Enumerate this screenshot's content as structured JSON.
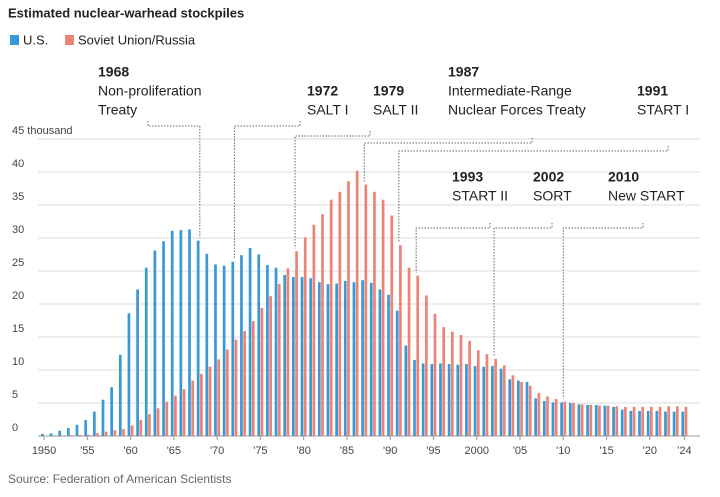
{
  "chart_data": {
    "type": "bar",
    "title": "Estimated nuclear-warhead stockpiles",
    "source": "Source: Federation of American Scientists",
    "x": [
      1950,
      1951,
      1952,
      1953,
      1954,
      1955,
      1956,
      1957,
      1958,
      1959,
      1960,
      1961,
      1962,
      1963,
      1964,
      1965,
      1966,
      1967,
      1968,
      1969,
      1970,
      1971,
      1972,
      1973,
      1974,
      1975,
      1976,
      1977,
      1978,
      1979,
      1980,
      1981,
      1982,
      1983,
      1984,
      1985,
      1986,
      1987,
      1988,
      1989,
      1990,
      1991,
      1992,
      1993,
      1994,
      1995,
      1996,
      1997,
      1998,
      1999,
      2000,
      2001,
      2002,
      2003,
      2004,
      2005,
      2006,
      2007,
      2008,
      2009,
      2010,
      2011,
      2012,
      2013,
      2014,
      2015,
      2016,
      2017,
      2018,
      2019,
      2020,
      2021,
      2022,
      2023,
      2024
    ],
    "series": [
      {
        "name": "U.S.",
        "color": "#3a98d6",
        "values": [
          0.3,
          0.4,
          0.8,
          1.2,
          1.7,
          2.4,
          3.7,
          5.5,
          7.4,
          12.3,
          18.6,
          22.2,
          25.5,
          28.1,
          29.5,
          31.1,
          31.2,
          31.3,
          29.6,
          27.6,
          26.0,
          25.8,
          26.4,
          27.4,
          28.5,
          27.5,
          25.9,
          25.5,
          24.4,
          24.1,
          24.1,
          23.9,
          23.3,
          23.0,
          23.1,
          23.5,
          23.3,
          23.6,
          23.2,
          22.2,
          21.4,
          19.0,
          13.7,
          11.5,
          11.0,
          10.9,
          11.0,
          10.9,
          10.8,
          10.9,
          10.6,
          10.5,
          10.6,
          10.2,
          8.6,
          8.4,
          8.2,
          5.7,
          5.3,
          5.1,
          5.1,
          5.0,
          4.8,
          4.7,
          4.7,
          4.6,
          4.4,
          4.0,
          3.8,
          3.8,
          3.8,
          3.8,
          3.7,
          3.7,
          3.7
        ]
      },
      {
        "name": "Soviet Union/Russia",
        "color": "#ee8275",
        "values": [
          0,
          0,
          0.05,
          0.12,
          0.15,
          0.2,
          0.43,
          0.66,
          0.87,
          1.05,
          1.6,
          2.45,
          3.3,
          4.2,
          5.2,
          6.1,
          7.1,
          8.4,
          9.4,
          10.5,
          11.6,
          13.1,
          14.6,
          15.9,
          17.4,
          19.4,
          21.2,
          23.0,
          25.4,
          28.0,
          30.1,
          32.0,
          33.6,
          35.8,
          37.0,
          38.6,
          40.2,
          38.1,
          37.0,
          35.8,
          33.4,
          28.9,
          25.5,
          24.3,
          21.3,
          18.5,
          16.5,
          15.8,
          15.3,
          14.4,
          13.0,
          12.4,
          11.7,
          10.7,
          9.2,
          8.2,
          7.6,
          6.5,
          6.0,
          5.6,
          5.2,
          5.0,
          4.8,
          4.7,
          4.6,
          4.6,
          4.5,
          4.4,
          4.4,
          4.4,
          4.4,
          4.4,
          4.5,
          4.5,
          4.4
        ]
      }
    ],
    "xlim": [
      1949.3,
      2025.8
    ],
    "xticks": [
      1950,
      {
        "value": 1955,
        "label": "'55"
      },
      {
        "value": 1960,
        "label": "'60"
      },
      {
        "value": 1965,
        "label": "'65"
      },
      {
        "value": 1970,
        "label": "'70"
      },
      {
        "value": 1975,
        "label": "'75"
      },
      {
        "value": 1980,
        "label": "'80"
      },
      {
        "value": 1985,
        "label": "'85"
      },
      {
        "value": 1990,
        "label": "'90"
      },
      {
        "value": 1995,
        "label": "'95"
      },
      2000,
      {
        "value": 2005,
        "label": "'05"
      },
      {
        "value": 2010,
        "label": "'10"
      },
      {
        "value": 2015,
        "label": "'15"
      },
      {
        "value": 2020,
        "label": "'20"
      },
      {
        "value": 2024,
        "label": "'24"
      }
    ],
    "ylim": [
      0,
      45
    ],
    "yticks": [
      0,
      5,
      10,
      15,
      20,
      25,
      30,
      35,
      40,
      {
        "value": 45,
        "label": "45 thousand"
      }
    ],
    "grid": true,
    "annotations": [
      {
        "x": 1968,
        "lines": [
          "Non-proliferation",
          "Treaty"
        ]
      },
      {
        "x": 1972,
        "lines": [
          "SALT I"
        ]
      },
      {
        "x": 1979,
        "lines": [
          "SALT II"
        ]
      },
      {
        "x": 1987,
        "lines": [
          "Intermediate-Range",
          "Nuclear Forces Treaty"
        ]
      },
      {
        "x": 1991,
        "lines": [
          "START I"
        ]
      },
      {
        "x": 1993,
        "lines": [
          "START II"
        ]
      },
      {
        "x": 2002,
        "lines": [
          "SORT"
        ]
      },
      {
        "x": 2010,
        "lines": [
          "New START"
        ]
      }
    ]
  }
}
